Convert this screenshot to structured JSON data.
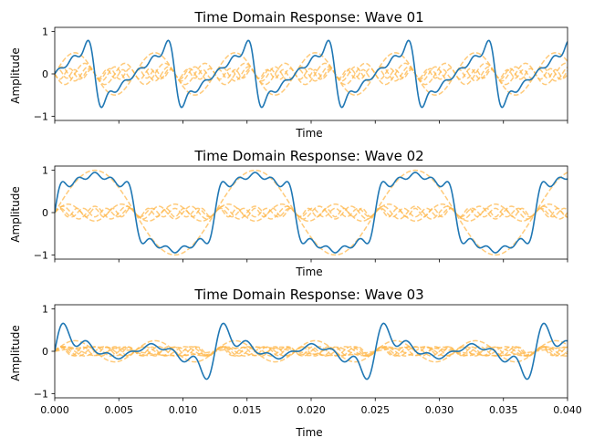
{
  "chart_data": [
    {
      "type": "line",
      "title": "Time Domain Response: Wave 01",
      "xlabel": "Time",
      "ylabel": "Amplitude",
      "xlim": [
        0,
        0.04
      ],
      "ylim": [
        -1.1,
        1.1
      ],
      "show_xticklabels": false,
      "xticks": [
        "0.000",
        "0.005",
        "0.010",
        "0.015",
        "0.020",
        "0.025",
        "0.030",
        "0.035",
        "0.040"
      ],
      "yticks": [
        "1",
        "0",
        "−1"
      ],
      "fundamental_hz": 160,
      "main_series": {
        "color": "#1f77b4",
        "shape": "sawtooth",
        "harmonics": [
          [
            1,
            0.5
          ],
          [
            2,
            -0.25
          ],
          [
            3,
            0.1667
          ],
          [
            4,
            -0.125
          ],
          [
            5,
            0.1
          ]
        ],
        "values": []
      },
      "component_series": {
        "color": "#ffb84d",
        "style": "dashed",
        "harmonics": [
          [
            1,
            0.5
          ],
          [
            2,
            -0.25
          ],
          [
            3,
            0.1667
          ],
          [
            4,
            -0.125
          ],
          [
            5,
            0.1
          ]
        ]
      }
    },
    {
      "type": "line",
      "title": "Time Domain Response: Wave 02",
      "xlabel": "Time",
      "ylabel": "Amplitude",
      "xlim": [
        0,
        0.04
      ],
      "ylim": [
        -1.1,
        1.1
      ],
      "show_xticklabels": false,
      "xticks": [
        "0.000",
        "0.005",
        "0.010",
        "0.015",
        "0.020",
        "0.025",
        "0.030",
        "0.035",
        "0.040"
      ],
      "yticks": [
        "1",
        "0",
        "−1"
      ],
      "fundamental_hz": 80,
      "main_series": {
        "color": "#1f77b4",
        "shape": "square",
        "harmonics": [
          [
            1,
            1.0
          ],
          [
            3,
            0.2
          ],
          [
            5,
            0.15
          ],
          [
            7,
            0.1
          ],
          [
            9,
            0.1
          ]
        ],
        "values": []
      },
      "component_series": {
        "color": "#ffb84d",
        "style": "dashed",
        "harmonics": [
          [
            1,
            1.0
          ],
          [
            3,
            0.2
          ],
          [
            5,
            0.15
          ],
          [
            7,
            0.1
          ],
          [
            9,
            0.1
          ]
        ]
      }
    },
    {
      "type": "line",
      "title": "Time Domain Response: Wave 03",
      "xlabel": "Time",
      "ylabel": "Amplitude",
      "xlim": [
        0,
        0.04
      ],
      "ylim": [
        -1.1,
        1.1
      ],
      "show_xticklabels": true,
      "xticks": [
        "0.000",
        "0.005",
        "0.010",
        "0.015",
        "0.020",
        "0.025",
        "0.030",
        "0.035",
        "0.040"
      ],
      "yticks": [
        "1",
        "0",
        "−1"
      ],
      "fundamental_hz": 80,
      "main_series": {
        "color": "#1f77b4",
        "shape": "triangle-harmonic",
        "harmonics": [
          [
            1,
            0.1
          ],
          [
            2,
            0.25
          ],
          [
            3,
            0.1
          ],
          [
            4,
            0.11
          ],
          [
            5,
            0.11
          ],
          [
            6,
            0.11
          ],
          [
            7,
            0.1
          ]
        ],
        "values": []
      },
      "component_series": {
        "color": "#ffb84d",
        "style": "dashed",
        "harmonics": [
          [
            1,
            0.1
          ],
          [
            2,
            0.25
          ],
          [
            3,
            0.1
          ],
          [
            4,
            0.11
          ],
          [
            5,
            0.11
          ],
          [
            6,
            0.11
          ],
          [
            7,
            0.1
          ]
        ]
      }
    }
  ]
}
